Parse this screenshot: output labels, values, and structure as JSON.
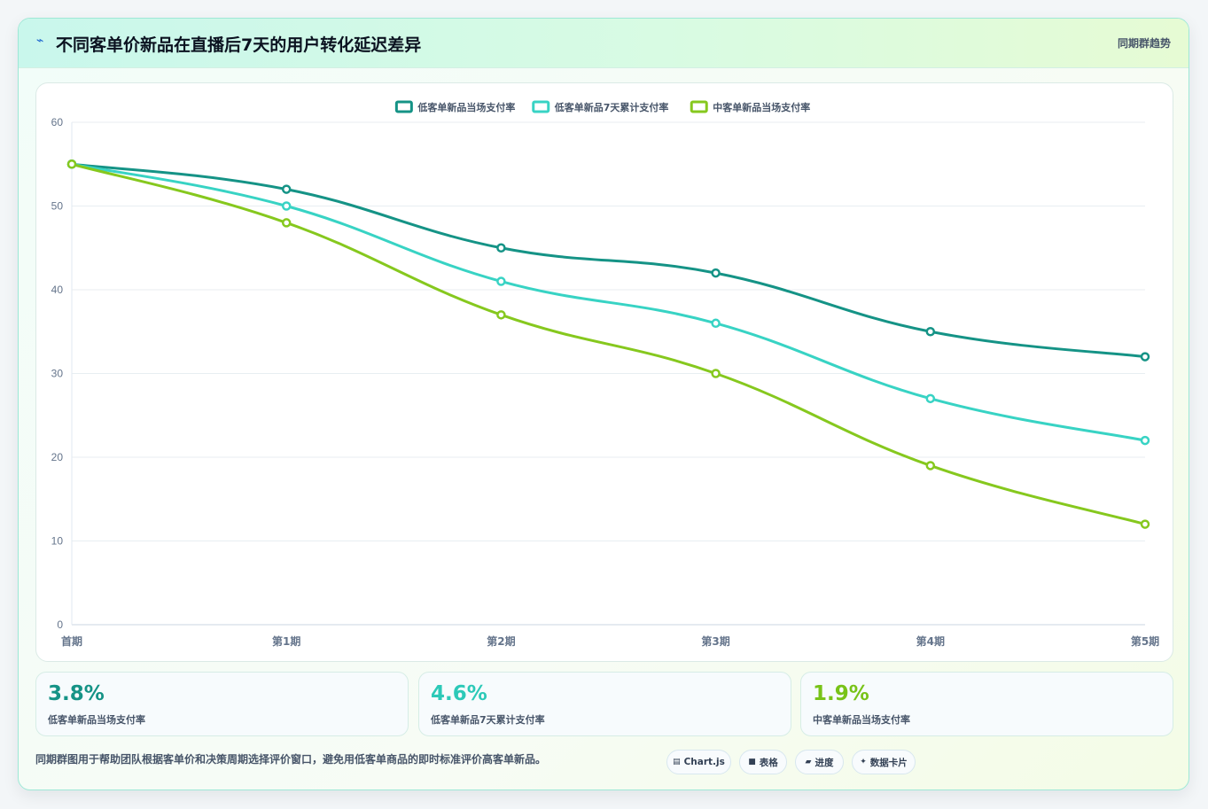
{
  "header": {
    "icon": "lightning-icon",
    "title": "不同客单价新品在直播后7天的用户转化延迟差异",
    "right_label": "同期群趋势"
  },
  "chart_data": {
    "type": "line",
    "categories": [
      "首期",
      "第1期",
      "第2期",
      "第3期",
      "第4期",
      "第5期"
    ],
    "series": [
      {
        "name": "低客单新品当场支付率",
        "color": "#159386",
        "values": [
          55,
          52,
          45,
          42,
          35,
          32
        ]
      },
      {
        "name": "低客单新品7天累计支付率",
        "color": "#38d3c4",
        "values": [
          55,
          50,
          41,
          36,
          27,
          22
        ]
      },
      {
        "name": "中客单新品当场支付率",
        "color": "#86c81e",
        "values": [
          55,
          48,
          37,
          30,
          19,
          12
        ]
      }
    ],
    "ylim": [
      0,
      60
    ],
    "yticks": [
      0,
      10,
      20,
      30,
      40,
      50,
      60
    ],
    "grid": true,
    "legend": "top-center",
    "title": "",
    "xlabel": "",
    "ylabel": ""
  },
  "stats": [
    {
      "value": "3.8%",
      "label": "低客单新品当场支付率",
      "color": "#159386"
    },
    {
      "value": "4.6%",
      "label": "低客单新品7天累计支付率",
      "color": "#2cc9b8"
    },
    {
      "value": "1.9%",
      "label": "中客单新品当场支付率",
      "color": "#78c318"
    }
  ],
  "footer": {
    "text": "同期群图用于帮助团队根据客单价和决策周期选择评价窗口，避免用低客单商品的即时标准评价高客单新品。",
    "pills": [
      {
        "icon": "chart-icon",
        "label": "Chart.js"
      },
      {
        "icon": "table-icon",
        "label": "表格"
      },
      {
        "icon": "progress-icon",
        "label": "进度"
      },
      {
        "icon": "sparkle-icon",
        "label": "数据卡片"
      }
    ]
  }
}
